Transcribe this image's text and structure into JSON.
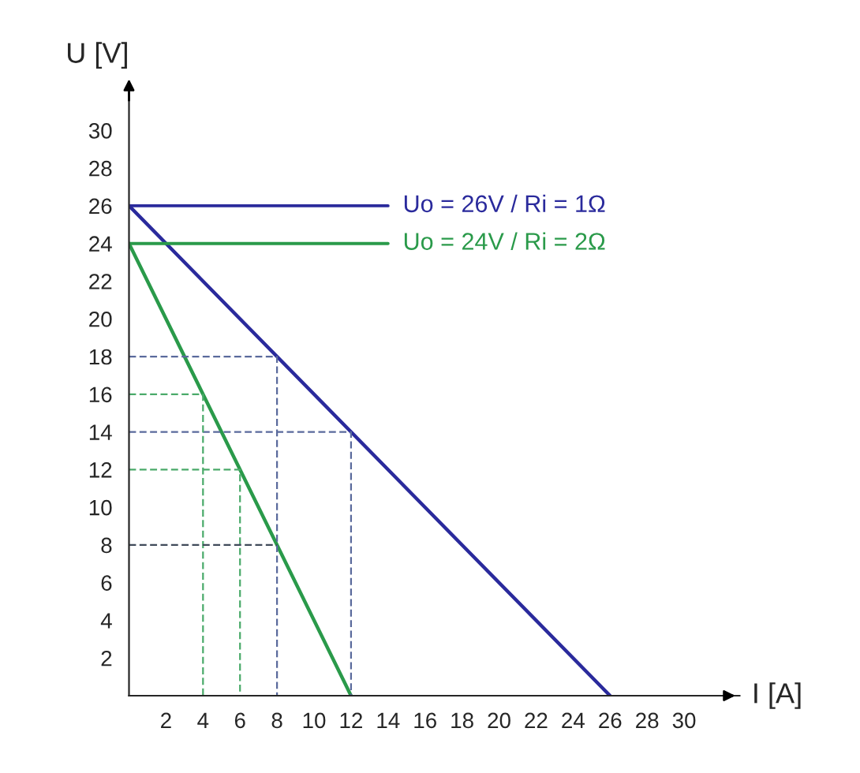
{
  "chart_data": {
    "type": "line",
    "xlabel": "I [A]",
    "ylabel": "U [V]",
    "xlim": [
      0,
      33
    ],
    "ylim": [
      0,
      32
    ],
    "xticks": [
      2,
      4,
      6,
      8,
      10,
      12,
      14,
      16,
      18,
      20,
      22,
      24,
      26,
      28,
      30
    ],
    "yticks": [
      2,
      4,
      6,
      8,
      10,
      12,
      14,
      16,
      18,
      20,
      22,
      24,
      26,
      28,
      30
    ],
    "grid": false,
    "legend": false,
    "series": [
      {
        "name": "Uo = 26V / Ri = 1Ω",
        "color": "#2a2a9c",
        "x": [
          0,
          26
        ],
        "values": [
          26,
          0
        ]
      },
      {
        "name": "Uo = 24V / Ri = 2Ω",
        "color": "#2a9a4a",
        "x": [
          0,
          12
        ],
        "values": [
          24,
          0
        ]
      },
      {
        "color": "#5a6a9c",
        "line_style": "dashed",
        "x": [
          0,
          8,
          8
        ],
        "values": [
          18,
          18,
          0
        ]
      },
      {
        "color": "#5a6a9c",
        "line_style": "dashed",
        "x": [
          0,
          12,
          12
        ],
        "values": [
          14,
          14,
          0
        ]
      },
      {
        "color": "#4aaa6a",
        "line_style": "dashed",
        "x": [
          0,
          4,
          4
        ],
        "values": [
          16,
          16,
          0
        ]
      },
      {
        "color": "#4aaa6a",
        "line_style": "dashed",
        "x": [
          0,
          6,
          6
        ],
        "values": [
          12,
          12,
          0
        ]
      },
      {
        "color": "#404a5a",
        "line_style": "dashed",
        "x": [
          0,
          8
        ],
        "values": [
          8,
          8
        ]
      }
    ]
  }
}
